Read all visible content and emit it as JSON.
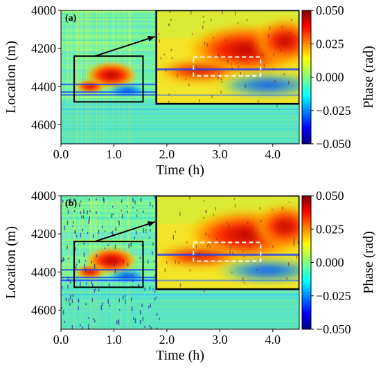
{
  "chart_data": [
    {
      "type": "heatmap",
      "panel_label": "(a)",
      "xlabel": "Time (h)",
      "ylabel": "Location (m)",
      "xlim": [
        0.0,
        4.5
      ],
      "ylim": [
        4700,
        4000
      ],
      "x_ticks": [
        "0.0",
        "1.0",
        "2.0",
        "3.0",
        "4.0"
      ],
      "x_tick_values": [
        0,
        1,
        2,
        3,
        4
      ],
      "y_ticks": [
        "4000",
        "4200",
        "4400",
        "4600"
      ],
      "y_tick_values": [
        4000,
        4200,
        4400,
        4600
      ],
      "colorbar": {
        "label": "Phase (rad)",
        "range": [
          -0.05,
          0.05
        ],
        "ticks": [
          "0.050",
          "0.025",
          "0.000",
          "−0.025",
          "−0.050"
        ],
        "tick_values": [
          0.05,
          0.025,
          0.0,
          -0.025,
          -0.05
        ],
        "colormap": "jet"
      },
      "zoom_box": {
        "time": [
          0.25,
          1.55
        ],
        "location": [
          4240,
          4480
        ]
      }
    },
    {
      "type": "heatmap",
      "panel_label": "(b)",
      "xlabel": "Time (h)",
      "ylabel": "Location (m)",
      "xlim": [
        0.0,
        4.5
      ],
      "ylim": [
        4700,
        4000
      ],
      "x_ticks": [
        "0.0",
        "1.0",
        "2.0",
        "3.0",
        "4.0"
      ],
      "x_tick_values": [
        0,
        1,
        2,
        3,
        4
      ],
      "y_ticks": [
        "4000",
        "4200",
        "4400",
        "4600"
      ],
      "y_tick_values": [
        4000,
        4200,
        4400,
        4600
      ],
      "colorbar": {
        "label": "Phase (rad)",
        "range": [
          -0.05,
          0.05
        ],
        "ticks": [
          "0.050",
          "0.025",
          "0.000",
          "−0.025",
          "−0.050"
        ],
        "tick_values": [
          0.05,
          0.025,
          0.0,
          -0.025,
          -0.05
        ],
        "colormap": "jet"
      },
      "zoom_box": {
        "time": [
          0.25,
          1.55
        ],
        "location": [
          4240,
          4480
        ]
      }
    }
  ]
}
